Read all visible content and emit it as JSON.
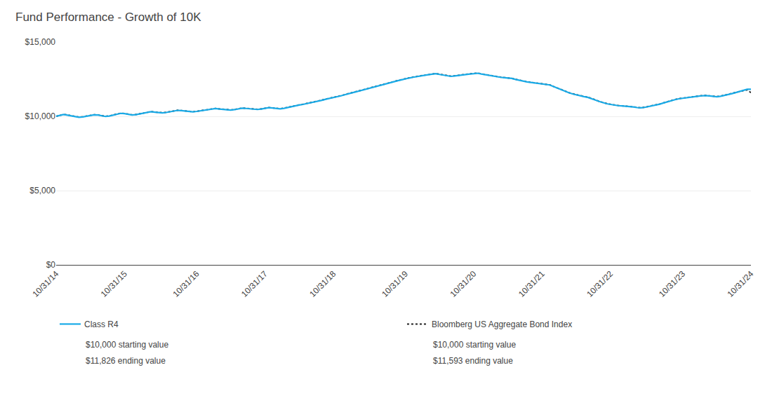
{
  "chart_data": {
    "type": "line",
    "title": "Fund Performance - Growth of 10K",
    "categories": [
      "10/31/14",
      null,
      null,
      null,
      null,
      null,
      null,
      null,
      null,
      null,
      null,
      null,
      null,
      null,
      null,
      null,
      null,
      null,
      "10/31/15",
      null,
      null,
      null,
      null,
      null,
      null,
      null,
      null,
      null,
      null,
      null,
      null,
      null,
      null,
      null,
      null,
      null,
      null,
      "10/31/16",
      null,
      null,
      null,
      null,
      null,
      null,
      null,
      null,
      null,
      null,
      null,
      null,
      null,
      null,
      null,
      null,
      null,
      "10/31/17",
      null,
      null,
      null,
      null,
      null,
      null,
      null,
      null,
      null,
      null,
      null,
      null,
      null,
      null,
      null,
      null,
      null,
      "10/31/18",
      null,
      null,
      null,
      null,
      null,
      null,
      null,
      null,
      null,
      null,
      null,
      null,
      null,
      null,
      null,
      null,
      null,
      null,
      "10/31/19",
      null,
      null,
      null,
      null,
      null,
      null,
      null,
      null,
      null,
      null,
      null,
      null,
      null,
      null,
      null,
      null,
      null,
      "10/31/20",
      null,
      null,
      null,
      null,
      null,
      null,
      null,
      null,
      null,
      null,
      null,
      null,
      null,
      null,
      null,
      null,
      null,
      "10/31/21",
      null,
      null,
      null,
      null,
      null,
      null,
      null,
      null,
      null,
      null,
      null,
      null,
      null,
      null,
      null,
      null,
      null,
      "10/31/22",
      null,
      null,
      null,
      null,
      null,
      null,
      null,
      null,
      null,
      null,
      null,
      null,
      null,
      null,
      null,
      null,
      null,
      null,
      "10/31/23",
      null,
      null,
      null,
      null,
      null,
      null,
      null,
      null,
      null,
      null,
      null,
      null,
      null,
      null,
      null,
      null,
      null,
      "10/31/24"
    ],
    "series": [
      {
        "name": "Bloomberg US Aggregate Bond Index",
        "color": "#222222",
        "line_style": "dotted",
        "values": [
          10000,
          10060,
          10130,
          10090,
          10040,
          9990,
          9950,
          9970,
          10020,
          10070,
          10110,
          10100,
          10060,
          10000,
          10030,
          10090,
          10160,
          10210,
          10190,
          10140,
          10100,
          10120,
          10170,
          10230,
          10280,
          10320,
          10290,
          10260,
          10240,
          10270,
          10320,
          10370,
          10410,
          10390,
          10360,
          10330,
          10310,
          10340,
          10380,
          10420,
          10460,
          10490,
          10530,
          10500,
          10470,
          10450,
          10430,
          10460,
          10510,
          10560,
          10540,
          10520,
          10490,
          10470,
          10500,
          10550,
          10590,
          10570,
          10540,
          10510,
          10550,
          10610,
          10680,
          10730,
          10770,
          10810,
          10860,
          10910,
          10970,
          11030,
          11090,
          11160,
          11210,
          11270,
          11330,
          11390,
          11460,
          11530,
          11600,
          11660,
          11730,
          11810,
          11880,
          11950,
          12010,
          12070,
          12140,
          12210,
          12280,
          12340,
          12410,
          12470,
          12540,
          12590,
          12640,
          12690,
          12730,
          12770,
          12810,
          12850,
          12880,
          12830,
          12780,
          12740,
          12700,
          12730,
          12770,
          12810,
          12830,
          12860,
          12880,
          12910,
          12860,
          12810,
          12760,
          12710,
          12670,
          12640,
          12610,
          12590,
          12560,
          12490,
          12430,
          12380,
          12330,
          12290,
          12260,
          12240,
          12200,
          12160,
          12120,
          12010,
          11900,
          11790,
          11690,
          11600,
          11520,
          11450,
          11400,
          11340,
          11290,
          11210,
          11110,
          11010,
          10930,
          10860,
          10810,
          10760,
          10730,
          10710,
          10690,
          10680,
          10640,
          10600,
          10580,
          10610,
          10660,
          10710,
          10770,
          10830,
          10910,
          10990,
          11060,
          11130,
          11190,
          11230,
          11270,
          11310,
          11340,
          11360,
          11390,
          11410,
          11380,
          11350,
          11330,
          11360,
          11410,
          11470,
          11540,
          11610,
          11670,
          11720,
          11780,
          11593
        ]
      },
      {
        "name": "Class R4",
        "color": "#1AABE8",
        "line_style": "solid",
        "values": [
          10000,
          10050,
          10120,
          10080,
          10030,
          9980,
          9940,
          9960,
          10010,
          10060,
          10100,
          10090,
          10050,
          9990,
          10020,
          10080,
          10150,
          10200,
          10180,
          10130,
          10090,
          10110,
          10160,
          10220,
          10270,
          10310,
          10280,
          10250,
          10230,
          10260,
          10310,
          10360,
          10400,
          10380,
          10350,
          10320,
          10300,
          10330,
          10370,
          10410,
          10450,
          10480,
          10520,
          10490,
          10460,
          10440,
          10420,
          10450,
          10500,
          10550,
          10530,
          10510,
          10480,
          10460,
          10490,
          10540,
          10580,
          10560,
          10530,
          10500,
          10540,
          10600,
          10670,
          10720,
          10760,
          10800,
          10850,
          10900,
          10960,
          11020,
          11080,
          11150,
          11200,
          11260,
          11320,
          11380,
          11450,
          11520,
          11590,
          11650,
          11720,
          11800,
          11870,
          11940,
          12000,
          12060,
          12130,
          12200,
          12270,
          12330,
          12400,
          12460,
          12530,
          12580,
          12630,
          12680,
          12720,
          12760,
          12800,
          12840,
          12870,
          12820,
          12770,
          12730,
          12690,
          12720,
          12760,
          12800,
          12820,
          12850,
          12870,
          12900,
          12850,
          12800,
          12750,
          12700,
          12660,
          12630,
          12600,
          12580,
          12550,
          12480,
          12420,
          12370,
          12320,
          12280,
          12250,
          12230,
          12190,
          12150,
          12110,
          12000,
          11890,
          11780,
          11680,
          11590,
          11510,
          11440,
          11390,
          11330,
          11280,
          11200,
          11100,
          11000,
          10920,
          10850,
          10800,
          10750,
          10720,
          10700,
          10680,
          10670,
          10630,
          10590,
          10570,
          10600,
          10650,
          10700,
          10760,
          10820,
          10900,
          10980,
          11050,
          11120,
          11180,
          11220,
          11260,
          11300,
          11330,
          11350,
          11380,
          11400,
          11370,
          11340,
          11320,
          11350,
          11400,
          11460,
          11530,
          11600,
          11680,
          11750,
          11820,
          11826
        ]
      }
    ],
    "annotations": [
      "$10,000 starting value",
      "$11,826 ending value",
      "$10,000 starting value",
      "$11,593 ending value"
    ],
    "ylim": [
      0,
      15000
    ],
    "yticks": [
      {
        "value": 0,
        "label": "$0"
      },
      {
        "value": 5000,
        "label": "$5,000"
      },
      {
        "value": 10000,
        "label": "$10,000"
      },
      {
        "value": 15000,
        "label": "$15,000"
      }
    ],
    "grid": true,
    "legend": "bottom"
  }
}
